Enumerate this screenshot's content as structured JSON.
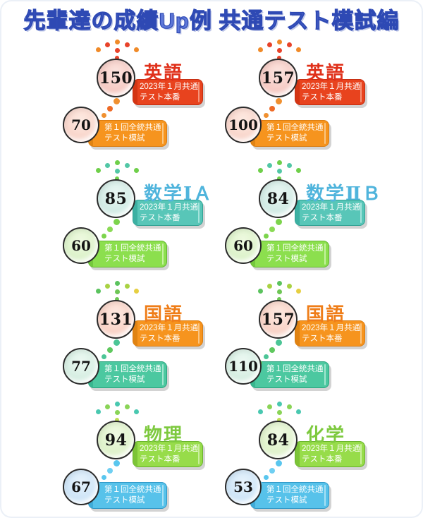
{
  "title": "先輩達の成績Up例 共通テスト模試編",
  "title_colors": {
    "fill": "#5d77d8",
    "outline": "#2e49b4"
  },
  "ribbon_labels": {
    "after_line1": "2023年１月共通",
    "after_line2": "テスト本番",
    "before_line1": "第１回全統共通",
    "before_line2": "テスト模試"
  },
  "groups": [
    {
      "subject": "英語",
      "after_score": "150",
      "before_score": "70",
      "colors": {
        "acc": "#e0301a",
        "bigf": "#f5c5be",
        "bighi": "#fbe5e0",
        "smallf": "#f8d2c7",
        "smallhi": "#fdeae2",
        "r1bg": "#e8431e",
        "r1bd": "#c32e12",
        "r1st": "#d43513",
        "r1ln": "#f79a80",
        "r2bg": "#f6941e",
        "r2bd": "#d97b10",
        "r2st": "#e08312",
        "r2ln": "#fbc787",
        "cluster": [
          "#f08a28",
          "#e8432a",
          "#f08a28",
          "#e8432a",
          "#f08a28",
          "#e8432a",
          "#e8432a",
          "#f08a28"
        ],
        "trail": [
          "#f09030",
          "#ee6a26",
          "#f09030",
          "#ee6a26"
        ]
      }
    },
    {
      "subject": "英語",
      "after_score": "157",
      "before_score": "100",
      "colors": {
        "acc": "#e0301a",
        "bigf": "#f5c5be",
        "bighi": "#fbe5e0",
        "smallf": "#f8d2c7",
        "smallhi": "#fdeae2",
        "r1bg": "#e8431e",
        "r1bd": "#c32e12",
        "r1st": "#d43513",
        "r1ln": "#f79a80",
        "r2bg": "#f6941e",
        "r2bd": "#d97b10",
        "r2st": "#e08312",
        "r2ln": "#fbc787",
        "cluster": [
          "#f08a28",
          "#e8432a",
          "#f08a28",
          "#e8432a",
          "#f08a28",
          "#e8432a",
          "#e8432a",
          "#f08a28"
        ],
        "trail": [
          "#f09030",
          "#ee6a26",
          "#f09030",
          "#ee6a26"
        ]
      }
    },
    {
      "subject": "数学ⅠＡ",
      "after_score": "85",
      "before_score": "60",
      "colors": {
        "acc": "#4fb4dc",
        "bigf": "#cde9e2",
        "bighi": "#eaf7f3",
        "smallf": "#d9f1c6",
        "smallhi": "#effae1",
        "r1bg": "#58c6b8",
        "r1bd": "#2fa193",
        "r1st": "#3cb0a2",
        "r1ln": "#a9e6dd",
        "r2bg": "#8cdf4e",
        "r2bd": "#62b52f",
        "r2st": "#74c83c",
        "r2ln": "#c8f2a2",
        "cluster": [
          "#6fcf4a",
          "#52c7a6",
          "#6fcf4a",
          "#52c7a6",
          "#6fcf4a",
          "#52c7a6",
          "#6fcf4a",
          "#52c7a6"
        ],
        "trail": [
          "#7cd44c",
          "#8ada55",
          "#7cd44c",
          "#8ada55"
        ]
      }
    },
    {
      "subject": "数学ⅡＢ",
      "after_score": "84",
      "before_score": "60",
      "colors": {
        "acc": "#4fb4dc",
        "bigf": "#cde9e2",
        "bighi": "#eaf7f3",
        "smallf": "#d9f1c6",
        "smallhi": "#effae1",
        "r1bg": "#58c6b8",
        "r1bd": "#2fa193",
        "r1st": "#3cb0a2",
        "r1ln": "#a9e6dd",
        "r2bg": "#8cdf4e",
        "r2bd": "#62b52f",
        "r2st": "#74c83c",
        "r2ln": "#c8f2a2",
        "cluster": [
          "#6fcf4a",
          "#52c7a6",
          "#6fcf4a",
          "#52c7a6",
          "#6fcf4a",
          "#52c7a6",
          "#6fcf4a",
          "#52c7a6"
        ],
        "trail": [
          "#7cd44c",
          "#8ada55",
          "#7cd44c",
          "#8ada55"
        ]
      }
    },
    {
      "subject": "国語",
      "after_score": "131",
      "before_score": "77",
      "colors": {
        "acc": "#ef7d18",
        "bigf": "#f8cec1",
        "bighi": "#fdeae2",
        "smallf": "#d2ecdf",
        "smallhi": "#edf9f3",
        "r1bg": "#f6941e",
        "r1bd": "#d97b10",
        "r1st": "#e08312",
        "r1ln": "#fbc787",
        "r2bg": "#4cc8a0",
        "r2bd": "#2aa37e",
        "r2st": "#38b68e",
        "r2ln": "#a5e8d2",
        "cluster": [
          "#5bc35e",
          "#a9d243",
          "#5bc35e",
          "#a9d243",
          "#e6cf42",
          "#6ec655",
          "#6ec655",
          "#f08a30"
        ],
        "trail": [
          "#4cc596",
          "#5fc85e",
          "#4cc596",
          "#5fc85e"
        ]
      }
    },
    {
      "subject": "国語",
      "after_score": "157",
      "before_score": "110",
      "colors": {
        "acc": "#ef7d18",
        "bigf": "#f8cec1",
        "bighi": "#fdeae2",
        "smallf": "#d2ecdf",
        "smallhi": "#edf9f3",
        "r1bg": "#f6941e",
        "r1bd": "#d97b10",
        "r1st": "#e08312",
        "r1ln": "#fbc787",
        "r2bg": "#4cc8a0",
        "r2bd": "#2aa37e",
        "r2st": "#38b68e",
        "r2ln": "#a5e8d2",
        "cluster": [
          "#5bc35e",
          "#a9d243",
          "#5bc35e",
          "#a9d243",
          "#e6cf42",
          "#6ec655",
          "#6ec655",
          "#f08a30"
        ],
        "trail": [
          "#4cc596",
          "#5fc85e",
          "#4cc596",
          "#5fc85e"
        ]
      }
    },
    {
      "subject": "物理",
      "after_score": "94",
      "before_score": "67",
      "colors": {
        "acc": "#7dc93e",
        "bigf": "#dcf1c6",
        "bighi": "#f0fae4",
        "smallf": "#c9e2f6",
        "smallhi": "#e7f3fc",
        "r1bg": "#97dc4a",
        "r1bd": "#68b22c",
        "r1st": "#7cc437",
        "r1ln": "#ccf0a2",
        "r2bg": "#57c2ea",
        "r2bd": "#2e97c6",
        "r2st": "#3fabd8",
        "r2ln": "#abe2f6",
        "cluster": [
          "#49c8b0",
          "#8ad457",
          "#49c8b0",
          "#8ad457",
          "#49c8b0",
          "#8ad457",
          "#bfdd55",
          "#49c8b0"
        ],
        "trail": [
          "#59c6ee",
          "#6fcff2",
          "#59c6ee",
          "#6fcff2"
        ]
      }
    },
    {
      "subject": "化学",
      "after_score": "84",
      "before_score": "53",
      "colors": {
        "acc": "#7dc93e",
        "bigf": "#dcf1c6",
        "bighi": "#f0fae4",
        "smallf": "#c9e2f6",
        "smallhi": "#e7f3fc",
        "r1bg": "#97dc4a",
        "r1bd": "#68b22c",
        "r1st": "#7cc437",
        "r1ln": "#ccf0a2",
        "r2bg": "#57c2ea",
        "r2bd": "#2e97c6",
        "r2st": "#3fabd8",
        "r2ln": "#abe2f6",
        "cluster": [
          "#49c8b0",
          "#8ad457",
          "#49c8b0",
          "#8ad457",
          "#49c8b0",
          "#8ad457",
          "#bfdd55",
          "#49c8b0"
        ],
        "trail": [
          "#59c6ee",
          "#6fcff2",
          "#59c6ee",
          "#6fcff2"
        ]
      }
    }
  ],
  "layout_note_values": {
    "rows": 4,
    "columns": 2
  }
}
